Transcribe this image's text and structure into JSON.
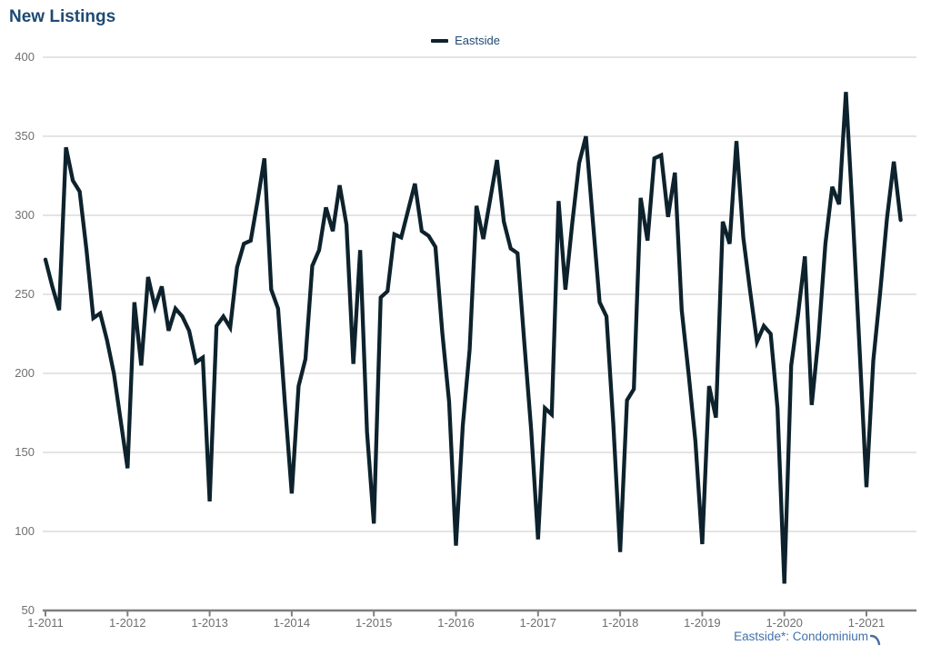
{
  "title": "New Listings",
  "legend": {
    "label": "Eastside"
  },
  "footer": {
    "selector_label": "Eastside*: Condominium"
  },
  "colors": {
    "title_text": "#1e4a73",
    "legend_text": "#1e4a73",
    "series_line": "#0d222c",
    "gridline": "#c9c9c9",
    "axis_line": "#7f7f7f",
    "tick_text": "#6f6f6f",
    "footer_link": "#4272ab"
  },
  "chart_data": {
    "type": "line",
    "title": "New Listings",
    "grid": "horizontal",
    "legend_position": "top-center",
    "y_axis": {
      "min": 50,
      "max": 400,
      "tick_step": 50,
      "ticks": [
        400,
        350,
        300,
        250,
        200,
        150,
        100,
        50
      ]
    },
    "x_axis": {
      "frequency": "monthly",
      "tick_labels": [
        "1-2011",
        "1-2012",
        "1-2013",
        "1-2014",
        "1-2015",
        "1-2016",
        "1-2017",
        "1-2018",
        "1-2019",
        "1-2020",
        "1-2021"
      ]
    },
    "series": [
      {
        "name": "Eastside",
        "start_month": "2011-01",
        "end_month": "2021-06",
        "values": [
          272,
          255,
          240,
          343,
          322,
          315,
          278,
          235,
          238,
          221,
          200,
          170,
          140,
          245,
          205,
          261,
          242,
          255,
          227,
          241,
          236,
          227,
          207,
          210,
          119,
          230,
          236,
          229,
          267,
          282,
          284,
          309,
          336,
          253,
          241,
          181,
          124,
          192,
          209,
          268,
          278,
          305,
          290,
          319,
          294,
          206,
          278,
          163,
          105,
          248,
          252,
          288,
          286,
          303,
          320,
          290,
          287,
          280,
          226,
          182,
          91,
          167,
          215,
          306,
          285,
          310,
          335,
          296,
          279,
          276,
          219,
          164,
          95,
          178,
          174,
          309,
          253,
          295,
          333,
          350,
          297,
          245,
          236,
          168,
          87,
          183,
          190,
          311,
          284,
          336,
          338,
          299,
          327,
          240,
          200,
          157,
          92,
          192,
          172,
          296,
          282,
          347,
          286,
          252,
          220,
          230,
          225,
          178,
          67,
          205,
          237,
          274,
          180,
          223,
          282,
          318,
          307,
          378,
          300,
          215,
          128,
          208,
          251,
          298,
          334,
          297
        ]
      }
    ]
  }
}
